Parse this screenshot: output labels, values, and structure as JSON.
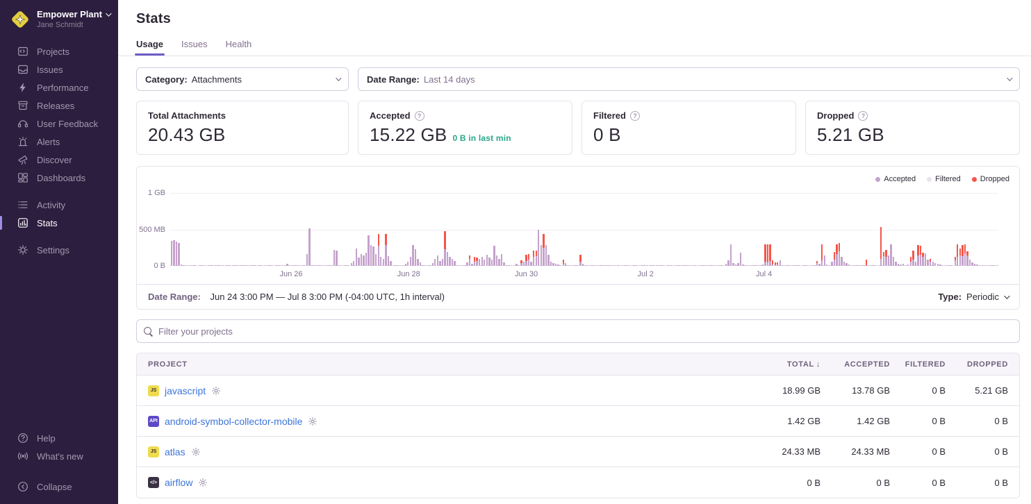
{
  "colors": {
    "sidebar_bg": "#2b1e3e",
    "accent_purple": "#6c5fc7",
    "link_blue": "#3d74db",
    "teal": "#2ba58c",
    "accepted_bar": "#c4a2cc",
    "filtered_dot": "#e8e4ed",
    "dropped_bar": "#f55549",
    "active_indicator": "#9d8ee3"
  },
  "sidebar": {
    "org": {
      "name": "Empower Plant",
      "user": "Jane Schmidt"
    },
    "groups": [
      [
        {
          "label": "Projects",
          "icon": "projects"
        },
        {
          "label": "Issues",
          "icon": "issues"
        },
        {
          "label": "Performance",
          "icon": "performance"
        },
        {
          "label": "Releases",
          "icon": "releases"
        },
        {
          "label": "User Feedback",
          "icon": "user-feedback"
        },
        {
          "label": "Alerts",
          "icon": "alerts"
        },
        {
          "label": "Discover",
          "icon": "discover"
        },
        {
          "label": "Dashboards",
          "icon": "dashboards"
        }
      ],
      [
        {
          "label": "Activity",
          "icon": "activity"
        },
        {
          "label": "Stats",
          "icon": "stats",
          "active": true
        }
      ],
      [
        {
          "label": "Settings",
          "icon": "settings"
        }
      ]
    ],
    "footer": [
      {
        "label": "Help",
        "icon": "help"
      },
      {
        "label": "What's new",
        "icon": "whats-new"
      },
      {
        "label": "Collapse",
        "icon": "collapse",
        "gap_before": true
      }
    ]
  },
  "header": {
    "title": "Stats",
    "tabs": [
      "Usage",
      "Issues",
      "Health"
    ],
    "active_tab": "Usage"
  },
  "filters": {
    "category_label": "Category:",
    "category_value": "Attachments",
    "date_range_label": "Date Range:",
    "date_range_value": "Last 14 days"
  },
  "cards": [
    {
      "label": "Total Attachments",
      "value": "20.43 GB",
      "help_icon": false,
      "extra": ""
    },
    {
      "label": "Accepted",
      "value": "15.22 GB",
      "help_icon": true,
      "extra": "0 B in last min"
    },
    {
      "label": "Filtered",
      "value": "0 B",
      "help_icon": true,
      "extra": ""
    },
    {
      "label": "Dropped",
      "value": "5.21 GB",
      "help_icon": true,
      "extra": ""
    }
  ],
  "chart": {
    "legend": [
      {
        "label": "Accepted",
        "color": "#c4a2cc"
      },
      {
        "label": "Filtered",
        "color": "#e8e4ed"
      },
      {
        "label": "Dropped",
        "color": "#f55549"
      }
    ],
    "footer": {
      "date_range_label": "Date Range:",
      "date_range_value": "Jun 24 3:00 PM — Jul 8 3:00 PM (-04:00 UTC, 1h interval)",
      "type_label": "Type:",
      "type_value": "Periodic"
    }
  },
  "chart_data": {
    "type": "bar",
    "subtype": "stacked-hourly-usage",
    "title": "Attachments usage over last 14 days",
    "unit": "MB",
    "interval": "1h",
    "x_range": "Jun 24 3:00 PM - Jul 8 3:00 PM",
    "ylim": [
      0,
      1000
    ],
    "ylabels": [
      {
        "text": "1 GB",
        "pct": 0
      },
      {
        "text": "500 MB",
        "pct": 50
      },
      {
        "text": "0 B",
        "pct": 100
      }
    ],
    "xlabels": [
      {
        "text": "Jun 26",
        "pct": 14.6
      },
      {
        "text": "Jun 28",
        "pct": 28.8
      },
      {
        "text": "Jun 30",
        "pct": 43.0
      },
      {
        "text": "Jul 2",
        "pct": 57.4
      },
      {
        "text": "Jul 4",
        "pct": 71.7
      }
    ],
    "series_format": "each bar = accepted_mb OR [accepted_mb, dropped_mb]; filtered is 0 throughout",
    "bars": [
      345,
      355,
      335,
      315,
      18,
      8,
      5,
      4,
      3,
      3,
      4,
      2,
      3,
      5,
      3,
      2,
      4,
      3,
      2,
      3,
      4,
      2,
      3,
      3,
      4,
      2,
      3,
      2,
      4,
      3,
      3,
      2,
      4,
      3,
      2,
      4,
      3,
      2,
      3,
      4,
      2,
      3,
      3,
      2,
      4,
      3,
      2,
      25,
      4,
      3,
      5,
      3,
      4,
      3,
      5,
      160,
      510,
      12,
      6,
      5,
      4,
      6,
      3,
      5,
      4,
      3,
      215,
      205,
      6,
      4,
      5,
      3,
      6,
      35,
      65,
      235,
      115,
      165,
      145,
      185,
      420,
      285,
      270,
      165,
      [
        275,
        160
      ],
      120,
      95,
      [
        285,
        150
      ],
      130,
      65,
      8,
      5,
      6,
      4,
      7,
      25,
      60,
      125,
      285,
      230,
      95,
      45,
      8,
      6,
      5,
      7,
      35,
      95,
      145,
      65,
      95,
      [
        230,
        250
      ],
      195,
      120,
      95,
      65,
      10,
      6,
      8,
      5,
      45,
      [
        95,
        45
      ],
      30,
      [
        60,
        60
      ],
      [
        70,
        40
      ],
      95,
      120,
      85,
      150,
      110,
      90,
      280,
      140,
      95,
      160,
      45,
      10,
      7,
      6,
      8,
      25,
      12,
      [
        40,
        40
      ],
      55,
      [
        70,
        80
      ],
      [
        90,
        70
      ],
      60,
      [
        120,
        90
      ],
      [
        130,
        80
      ],
      500,
      290,
      [
        250,
        190
      ],
      290,
      150,
      60,
      40,
      25,
      15,
      10,
      [
        30,
        60
      ],
      35,
      8,
      5,
      6,
      4,
      5,
      [
        60,
        90
      ],
      25,
      3,
      2,
      4,
      3,
      2,
      3,
      4,
      2,
      3,
      3,
      2,
      4,
      3,
      2,
      3,
      4,
      2,
      3,
      2,
      4,
      3,
      2,
      3,
      3,
      4,
      2,
      3,
      2,
      4,
      3,
      3,
      2,
      4,
      3,
      2,
      3,
      4,
      2,
      3,
      3,
      2,
      4,
      3,
      2,
      3,
      4,
      2,
      3,
      2,
      4,
      3,
      2,
      3,
      3,
      4,
      2,
      10,
      25,
      80,
      300,
      40,
      15,
      35,
      180,
      20,
      8,
      12,
      6,
      9,
      14,
      8,
      10,
      15,
      [
        60,
        240
      ],
      [
        50,
        250
      ],
      [
        70,
        230
      ],
      [
        20,
        60
      ],
      [
        10,
        40
      ],
      [
        15,
        30
      ],
      80,
      12,
      8,
      6,
      10,
      5,
      8,
      4,
      6,
      9,
      5,
      7,
      4,
      8,
      6,
      [
        40,
        30
      ],
      25,
      [
        80,
        220
      ],
      140,
      20,
      10,
      60,
      [
        90,
        100
      ],
      [
        160,
        140
      ],
      [
        200,
        115
      ],
      120,
      60,
      40,
      20,
      8,
      5,
      10,
      6,
      4,
      12,
      [
        0,
        90
      ],
      6,
      9,
      5,
      8,
      6,
      [
        100,
        430
      ],
      [
        130,
        60
      ],
      [
        120,
        100
      ],
      140,
      300,
      120,
      60,
      30,
      15,
      25,
      10,
      18,
      [
        60,
        60
      ],
      [
        90,
        120
      ],
      60,
      [
        140,
        150
      ],
      [
        150,
        130
      ],
      [
        120,
        60
      ],
      170,
      90,
      [
        60,
        40
      ],
      60,
      40,
      25,
      15,
      10,
      8,
      12,
      6,
      9,
      [
        80,
        40
      ],
      [
        120,
        180
      ],
      [
        140,
        100
      ],
      [
        130,
        160
      ],
      [
        170,
        130
      ],
      [
        140,
        60
      ],
      90,
      50,
      30,
      20,
      12,
      8,
      6,
      9,
      5,
      7,
      4,
      6
    ]
  },
  "search": {
    "placeholder": "Filter your projects"
  },
  "table": {
    "columns": [
      "PROJECT",
      "TOTAL",
      "ACCEPTED",
      "FILTERED",
      "DROPPED"
    ],
    "sorted_column": "TOTAL",
    "rows": [
      {
        "name": "javascript",
        "icon_text": "JS",
        "icon_bg": "#f0db4f",
        "icon_fg": "#32302c",
        "total": "18.99 GB",
        "accepted": "13.78 GB",
        "filtered": "0 B",
        "dropped": "5.21 GB"
      },
      {
        "name": "android-symbol-collector-mobile",
        "icon_text": "API",
        "icon_bg": "#5e48c8",
        "icon_fg": "#ffffff",
        "total": "1.42 GB",
        "accepted": "1.42 GB",
        "filtered": "0 B",
        "dropped": "0 B"
      },
      {
        "name": "atlas",
        "icon_text": "JS",
        "icon_bg": "#f0db4f",
        "icon_fg": "#32302c",
        "total": "24.33 MB",
        "accepted": "24.33 MB",
        "filtered": "0 B",
        "dropped": "0 B"
      },
      {
        "name": "airflow",
        "icon_text": "</>",
        "icon_bg": "#3a3243",
        "icon_fg": "#ffffff",
        "total": "0 B",
        "accepted": "0 B",
        "filtered": "0 B",
        "dropped": "0 B"
      }
    ]
  }
}
